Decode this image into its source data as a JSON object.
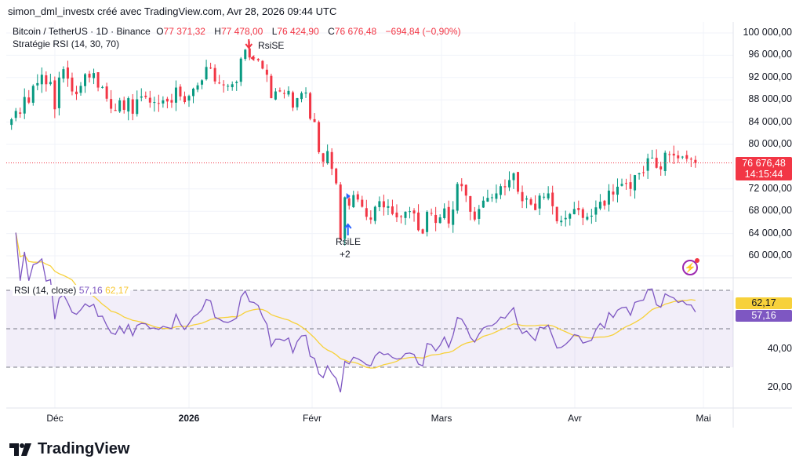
{
  "header": {
    "caption": "simon_dml_investx créé avec TradingView.com, Avr 28, 2026 09:44 UTC"
  },
  "legend": {
    "symbol": "Bitcoin / TetherUS · 1D · Binance",
    "open_label": "O",
    "open": "77 371,32",
    "high_label": "H",
    "high": "77 478,00",
    "low_label": "L",
    "low": "76 424,90",
    "close_label": "C",
    "close": "76 676,48",
    "change": "−694,84 (−0,90%)",
    "strategy": "Stratégie RSI (14, 30, 70)"
  },
  "price_axis": [
    "100 000,00",
    "96 000,00",
    "92 000,00",
    "88 000,00",
    "84 000,00",
    "80 000,00",
    "72 000,00",
    "68 000,00",
    "64 000,00",
    "60 000,00"
  ],
  "last_price": {
    "value": "76 676,48",
    "countdown": "14:15:44"
  },
  "rsi": {
    "title": "RSI (14, close)",
    "rsi_value": "57,16",
    "ma_value": "62,17",
    "axis": [
      "40,00",
      "20,00"
    ]
  },
  "time_axis": [
    "Déc",
    "2026",
    "Févr",
    "Mars",
    "Avr",
    "Mai"
  ],
  "signals": {
    "short_label": "RsiSE",
    "long_label": "RsiLE",
    "long_count": "+2"
  },
  "logo": {
    "text": "TradingView"
  },
  "colors": {
    "up": "#089981",
    "down": "#f23645",
    "rsi": "#7e57c2",
    "rsi_ma": "#f7d13b",
    "signal_long": "#2962ff",
    "signal_short": "#f23645"
  },
  "chart_data": {
    "type": "candlestick",
    "start_date": "2025-11-21",
    "unit": "thousand USDT",
    "closes": [
      84.5,
      86.0,
      85.5,
      88.5,
      87.5,
      90.5,
      91.0,
      92.5,
      90.8,
      91.2,
      86.3,
      92.0,
      93.5,
      91.8,
      89.5,
      89.0,
      90.5,
      92.6,
      92.0,
      92.8,
      90.2,
      90.3,
      88.2,
      86.4,
      86.0,
      87.9,
      86.2,
      88.3,
      85.5,
      88.1,
      88.6,
      88.5,
      87.5,
      87.6,
      87.3,
      87.9,
      87.7,
      87.5,
      90.2,
      88.6,
      87.6,
      88.7,
      90.0,
      90.6,
      91.5,
      93.9,
      93.7,
      91.3,
      91.0,
      90.6,
      90.5,
      90.8,
      91.2,
      95.4,
      97.0,
      95.6,
      95.5,
      95.1,
      93.6,
      92.5,
      88.3,
      89.5,
      89.5,
      89.2,
      89.6,
      86.6,
      88.3,
      89.2,
      89.3,
      84.6,
      84.0,
      78.6,
      76.9,
      78.8,
      75.6,
      73.0,
      62.9,
      70.5,
      69.0,
      70.9,
      70.1,
      68.8,
      67.0,
      66.5,
      68.8,
      69.8,
      68.7,
      68.9,
      67.5,
      66.9,
      67.0,
      67.9,
      68.0,
      67.6,
      64.6,
      64.0,
      67.9,
      67.6,
      65.9,
      66.9,
      68.5,
      65.8,
      68.3,
      72.9,
      72.5,
      70.8,
      67.9,
      66.5,
      68.4,
      69.9,
      70.4,
      70.5,
      71.2,
      72.5,
      72.3,
      73.6,
      74.8,
      71.5,
      69.8,
      70.3,
      69.2,
      68.2,
      70.8,
      70.6,
      71.2,
      68.9,
      66.2,
      66.3,
      66.8,
      67.5,
      68.4,
      68.2,
      66.8,
      67.0,
      67.2,
      68.7,
      69.7,
      69.0,
      71.7,
      71.0,
      72.4,
      72.9,
      73.0,
      72.0,
      74.5,
      74.8,
      75.0,
      77.5,
      77.6,
      75.8,
      75.5,
      78.5,
      78.2,
      78.0,
      77.5,
      77.8,
      77.4,
      77.37,
      76.68
    ],
    "ylim": [
      58000,
      102000
    ],
    "rsi_levels": [
      70,
      50,
      30
    ]
  }
}
